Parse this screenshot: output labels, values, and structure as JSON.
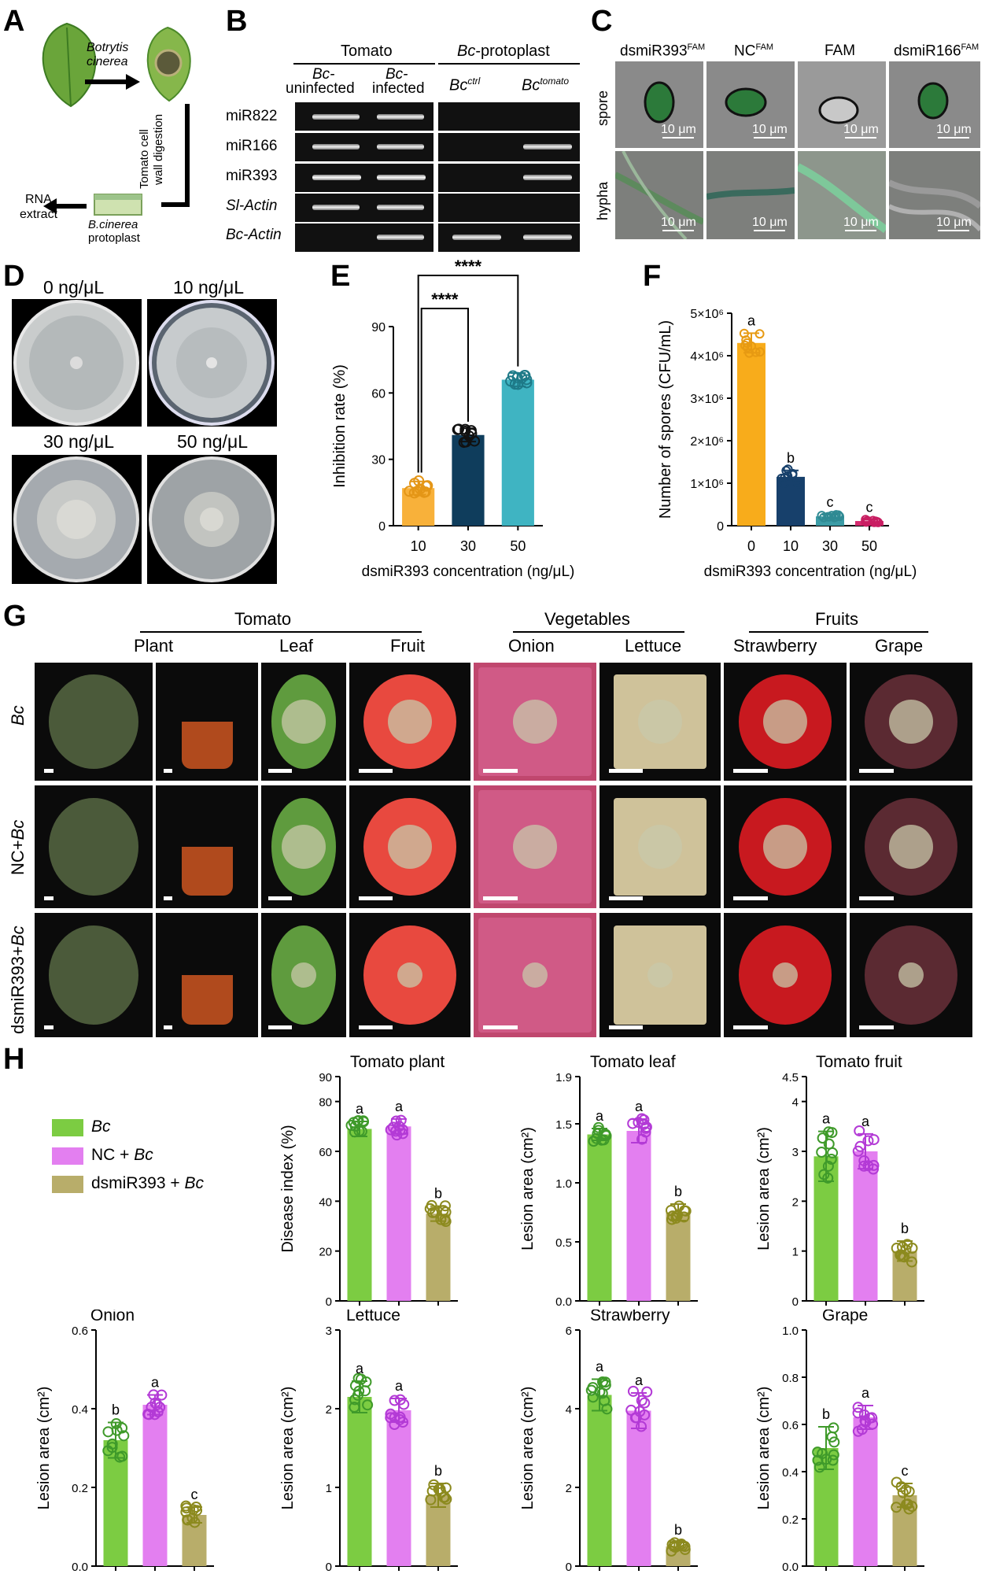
{
  "panel_letters": {
    "A": "A",
    "B": "B",
    "C": "C",
    "D": "D",
    "E": "E",
    "F": "F",
    "G": "G",
    "H": "H"
  },
  "panelA": {
    "pathogen_line1": "Botrytis",
    "pathogen_line2": "cinerea",
    "digest_line1": "Tomato cell",
    "digest_line2": "wall digestion",
    "protoplast_line1": "B.cinerea",
    "protoplast_line2": "protoplast",
    "rna_line1": "RNA",
    "rna_line2": "extract"
  },
  "panelB": {
    "group1": "Tomato",
    "group2_italic": "Bc",
    "group2_rest": "-protoplast",
    "col1_italic": "Bc-",
    "col1_rest": "uninfected",
    "col2_italic": "Bc-",
    "col2_rest": "infected",
    "col3_main": "Bc",
    "col3_sup": "ctrl",
    "col4_main": "Bc",
    "col4_sup": "tomato",
    "rows": [
      "miR822",
      "miR166",
      "miR393",
      "Sl-Actin",
      "Bc-Actin"
    ]
  },
  "panelC": {
    "cols": [
      {
        "main": "dsmiR393",
        "sup": "FAM"
      },
      {
        "main": "NC",
        "sup": "FAM"
      },
      {
        "main": "FAM",
        "sup": ""
      },
      {
        "main": "dsmiR166",
        "sup": "FAM"
      }
    ],
    "rows": [
      "spore",
      "hypha"
    ],
    "scale": "10 μm"
  },
  "panelD": {
    "labels": [
      "0 ng/μL",
      "10 ng/μL",
      "30 ng/μL",
      "50 ng/μL"
    ]
  },
  "panelG": {
    "group_tomato": "Tomato",
    "group_veg": "Vegetables",
    "group_fruit": "Fruits",
    "cols": [
      "Plant",
      "Leaf",
      "Fruit",
      "Onion",
      "Lettuce",
      "Strawberry",
      "Grape"
    ],
    "rows": [
      {
        "italic": "Bc",
        "pre": ""
      },
      {
        "pre": "NC+",
        "italic": "Bc"
      },
      {
        "pre": "dsmiR393+",
        "italic": "Bc"
      }
    ]
  },
  "legendH": [
    {
      "pre": "",
      "italic": "Bc",
      "color": "#7ccc42"
    },
    {
      "pre": "NC + ",
      "italic": "Bc",
      "color": "#e37ff0"
    },
    {
      "pre": "dsmiR393 + ",
      "italic": "Bc",
      "color": "#b8ad6a"
    }
  ],
  "colors": {
    "bc": "#7ccc42",
    "bc_dot": "#3f9a2a",
    "nc": "#e37ff0",
    "nc_dot": "#b33ad6",
    "ds": "#b8ad6a",
    "ds_dot": "#8c8a1e",
    "e10": "#f8b13a",
    "e30": "#0f3d5c",
    "e50": "#3fb4c2",
    "f0": "#f8ac1b",
    "f10": "#17406b",
    "f30": "#3c9ca6",
    "f50": "#d52b6f"
  },
  "chart_data": [
    {
      "id": "E",
      "type": "bar",
      "xlabel": "dsmiR393 concentration (ng/μL)",
      "ylabel": "Inhibition rate (%)",
      "categories": [
        "10",
        "30",
        "50"
      ],
      "values": [
        17,
        41,
        66
      ],
      "errors": [
        3,
        3,
        3
      ],
      "ylim": [
        0,
        90
      ],
      "yticks": [
        "0",
        "30",
        "60",
        "90"
      ],
      "significance": [
        "****",
        "****"
      ]
    },
    {
      "id": "F",
      "type": "bar",
      "xlabel": "dsmiR393 concentration (ng/μL)",
      "ylabel": "Number of spores (CFU/mL)",
      "categories": [
        "0",
        "10",
        "30",
        "50"
      ],
      "values": [
        4300000,
        1150000,
        220000,
        110000
      ],
      "errors": [
        230000,
        150000,
        40000,
        30000
      ],
      "ylim": [
        0,
        5000000
      ],
      "yticks": [
        "0",
        "1×10⁶",
        "2×10⁶",
        "3×10⁶",
        "4×10⁶",
        "5×10⁶"
      ],
      "letters": [
        "a",
        "b",
        "c",
        "c"
      ]
    },
    {
      "id": "H-tomato-plant",
      "type": "bar",
      "title": "Tomato plant",
      "ylabel": "Disease index (%)",
      "categories": [
        "Bc",
        "NC + Bc",
        "dsmiR393 + Bc"
      ],
      "values": [
        69,
        70,
        35
      ],
      "errors": [
        3,
        3,
        3
      ],
      "ylim": [
        0,
        90
      ],
      "yticks": [
        "0",
        "20",
        "40",
        "60",
        "80",
        "90"
      ],
      "letters": [
        "a",
        "a",
        "b"
      ]
    },
    {
      "id": "H-tomato-leaf",
      "type": "bar",
      "title": "Tomato leaf",
      "ylabel": "Lesion area (cm²)",
      "categories": [
        "Bc",
        "NC + Bc",
        "dsmiR393 + Bc"
      ],
      "values": [
        1.41,
        1.44,
        0.75
      ],
      "errors": [
        0.05,
        0.1,
        0.07
      ],
      "ylim": [
        0,
        1.9
      ],
      "yticks": [
        "0.0",
        "0.5",
        "1.0",
        "1.5",
        "1.9"
      ],
      "letters": [
        "a",
        "a",
        "b"
      ]
    },
    {
      "id": "H-tomato-fruit",
      "type": "bar",
      "title": "Tomato fruit",
      "ylabel": "Lesion area (cm²)",
      "categories": [
        "Bc",
        "NC + Bc",
        "dsmiR393 + Bc"
      ],
      "values": [
        2.9,
        3.0,
        1.0
      ],
      "errors": [
        0.5,
        0.35,
        0.2
      ],
      "ylim": [
        0,
        4.5
      ],
      "yticks": [
        "0",
        "1",
        "2",
        "3",
        "4",
        "4.5"
      ],
      "letters": [
        "a",
        "a",
        "b"
      ]
    },
    {
      "id": "H-onion",
      "type": "bar",
      "title": "Onion",
      "ylabel": "Lesion area (cm²)",
      "categories": [
        "Bc",
        "NC + Bc",
        "dsmiR393 + Bc"
      ],
      "values": [
        0.32,
        0.41,
        0.13
      ],
      "errors": [
        0.045,
        0.025,
        0.02
      ],
      "ylim": [
        0,
        0.6
      ],
      "yticks": [
        "0.0",
        "0.2",
        "0.4",
        "0.6"
      ],
      "letters": [
        "b",
        "a",
        "c"
      ]
    },
    {
      "id": "H-lettuce",
      "type": "bar",
      "title": "Lettuce",
      "ylabel": "Lesion area (cm²)",
      "categories": [
        "Bc",
        "NC + Bc",
        "dsmiR393 + Bc"
      ],
      "values": [
        2.15,
        1.98,
        0.9
      ],
      "errors": [
        0.2,
        0.15,
        0.15
      ],
      "ylim": [
        0,
        3
      ],
      "yticks": [
        "0",
        "1",
        "2",
        "3"
      ],
      "letters": [
        "a",
        "a",
        "b"
      ]
    },
    {
      "id": "H-strawberry",
      "type": "bar",
      "title": "Strawberry",
      "ylabel": "Lesion area (cm²)",
      "categories": [
        "Bc",
        "NC + Bc",
        "dsmiR393 + Bc"
      ],
      "values": [
        4.35,
        3.95,
        0.5
      ],
      "errors": [
        0.4,
        0.45,
        0.1
      ],
      "ylim": [
        0,
        6
      ],
      "yticks": [
        "0",
        "2",
        "4",
        "6"
      ],
      "letters": [
        "a",
        "a",
        "b"
      ]
    },
    {
      "id": "H-grape",
      "type": "bar",
      "title": "Grape",
      "ylabel": "Lesion area (cm²)",
      "categories": [
        "Bc",
        "NC + Bc",
        "dsmiR393 + Bc"
      ],
      "values": [
        0.5,
        0.63,
        0.3
      ],
      "errors": [
        0.09,
        0.05,
        0.05
      ],
      "ylim": [
        0,
        1.0
      ],
      "yticks": [
        "0.0",
        "0.2",
        "0.4",
        "0.6",
        "0.8",
        "1.0"
      ],
      "letters": [
        "b",
        "a",
        "c"
      ]
    }
  ]
}
